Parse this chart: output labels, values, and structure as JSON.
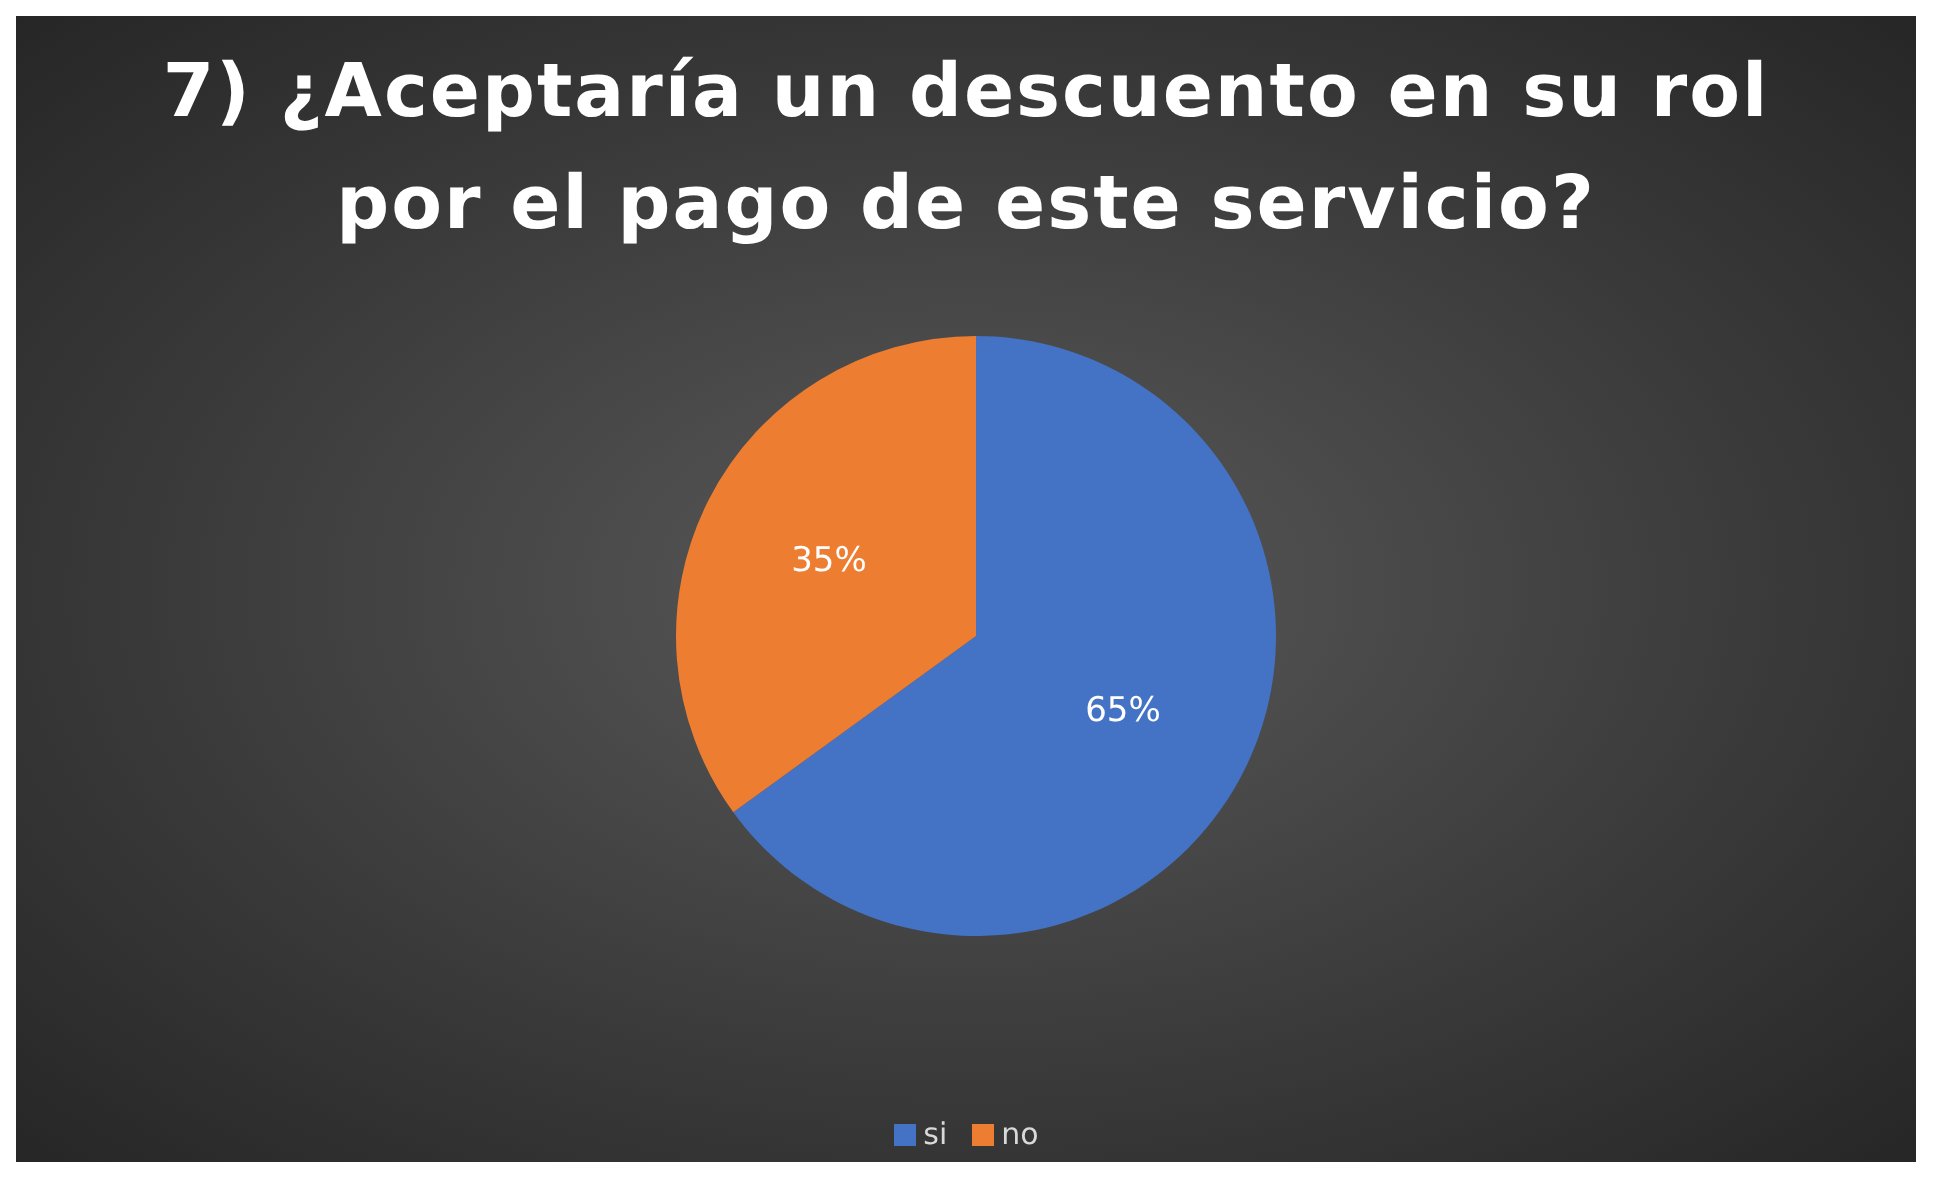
{
  "chart_data": {
    "type": "pie",
    "title": "7) ¿Aceptaría un descuento en su rol por el pago de este servicio?",
    "categories": [
      "si",
      "no"
    ],
    "values": [
      65,
      35
    ],
    "colors": [
      "#4472c4",
      "#ed7d31"
    ],
    "value_labels": [
      "65%",
      "35%"
    ],
    "legend": "bottom"
  }
}
